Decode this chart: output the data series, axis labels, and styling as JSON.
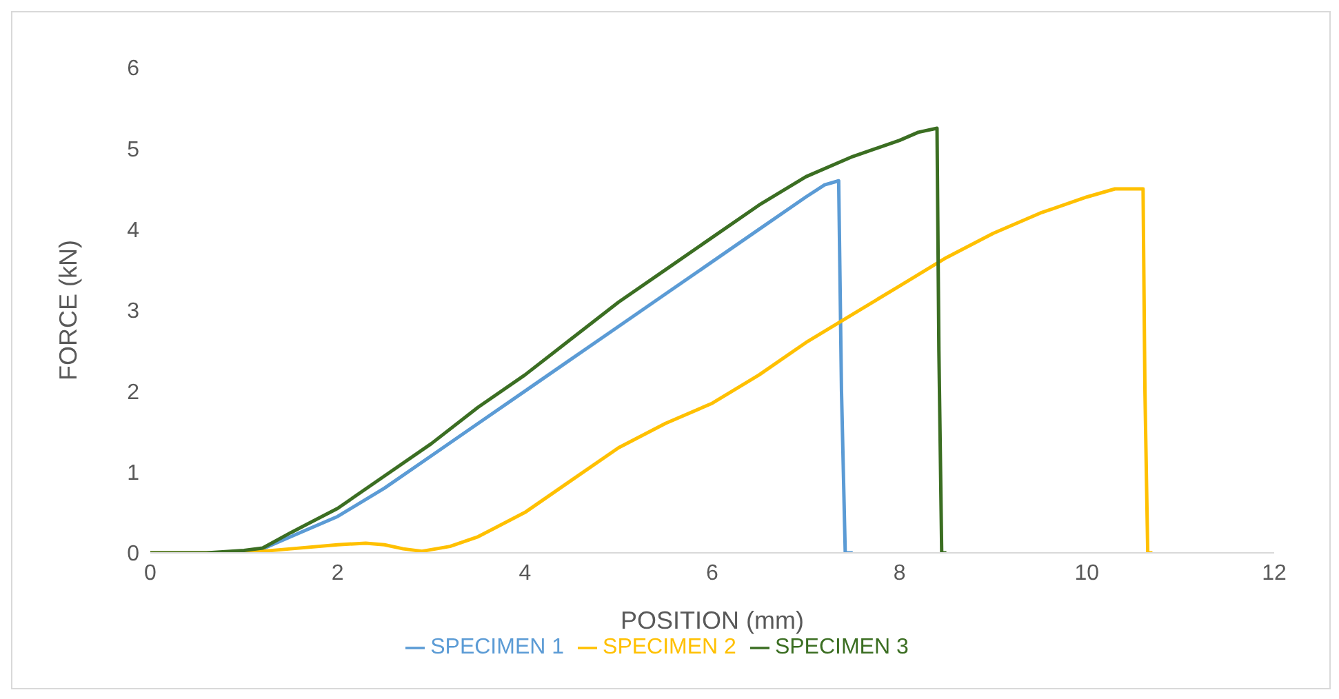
{
  "chart_data": {
    "type": "line",
    "xlabel": "POSITION (mm)",
    "ylabel": "FORCE (kN)",
    "xlim": [
      0,
      12
    ],
    "xticks": [
      0,
      2,
      4,
      6,
      8,
      10,
      12
    ],
    "ylim": [
      0,
      6
    ],
    "yticks": [
      0,
      1,
      2,
      3,
      4,
      5,
      6
    ],
    "grid": false,
    "legend": "bottom",
    "marker": "none",
    "line_style": "solid",
    "series": [
      {
        "name": "SPECIMEN 1",
        "color": "#5b9bd5",
        "x": [
          1.0,
          1.2,
          1.5,
          2,
          2.5,
          3,
          3.5,
          4,
          4.5,
          5,
          5.5,
          6,
          6.5,
          7,
          7.2,
          7.35,
          7.38,
          7.42,
          7.5
        ],
        "values": [
          0.02,
          0.05,
          0.2,
          0.45,
          0.8,
          1.2,
          1.6,
          2.0,
          2.4,
          2.8,
          3.2,
          3.6,
          4.0,
          4.4,
          4.55,
          4.6,
          2.0,
          0,
          0
        ]
      },
      {
        "name": "SPECIMEN 2",
        "color": "#ffc000",
        "x": [
          0,
          1.0,
          1.2,
          1.5,
          2,
          2.3,
          2.5,
          2.7,
          2.9,
          3.2,
          3.5,
          4,
          4.5,
          5,
          5.5,
          6,
          6.5,
          7,
          7.5,
          8,
          8.5,
          9,
          9.5,
          10,
          10.3,
          10.6,
          10.62,
          10.65,
          10.7
        ],
        "values": [
          0,
          0,
          0.02,
          0.05,
          0.1,
          0.12,
          0.1,
          0.05,
          0.02,
          0.08,
          0.2,
          0.5,
          0.9,
          1.3,
          1.6,
          1.85,
          2.2,
          2.6,
          2.95,
          3.3,
          3.65,
          3.95,
          4.2,
          4.4,
          4.5,
          4.5,
          2.0,
          0,
          0
        ]
      },
      {
        "name": "SPECIMEN 3",
        "color": "#3b6e22",
        "x": [
          0,
          0.6,
          1.0,
          1.2,
          1.5,
          2,
          2.5,
          3,
          3.5,
          4,
          4.5,
          5,
          5.5,
          6,
          6.5,
          7,
          7.5,
          8,
          8.2,
          8.4,
          8.42,
          8.45,
          8.5
        ],
        "values": [
          0,
          0,
          0.03,
          0.06,
          0.25,
          0.55,
          0.95,
          1.35,
          1.8,
          2.2,
          2.65,
          3.1,
          3.5,
          3.9,
          4.3,
          4.65,
          4.9,
          5.1,
          5.2,
          5.25,
          2.5,
          0,
          0
        ]
      }
    ]
  }
}
